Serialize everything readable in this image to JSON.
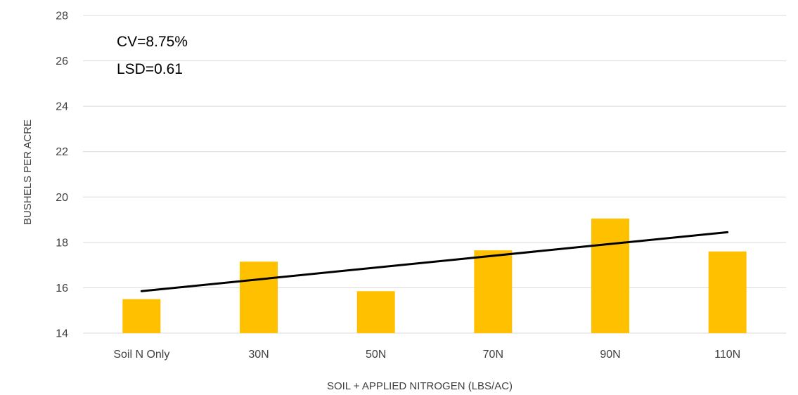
{
  "chart_data": {
    "type": "bar",
    "categories": [
      "Soil N Only",
      "30N",
      "50N",
      "70N",
      "90N",
      "110N"
    ],
    "values": [
      15.5,
      17.15,
      15.85,
      17.65,
      19.05,
      17.6
    ],
    "trendline": {
      "type": "linear",
      "start": 15.85,
      "end": 18.45
    },
    "xlabel": "SOIL + APPLIED NITROGEN (LBS/AC)",
    "ylabel": "BUSHELS PER ACRE",
    "ylim": [
      14,
      28
    ],
    "yticks": [
      14,
      16,
      18,
      20,
      22,
      24,
      26,
      28
    ],
    "grid": true,
    "annotations": [
      "CV=8.75%",
      "LSD=0.61"
    ],
    "colors": {
      "bar": "#FFC000",
      "trendline": "#000000",
      "grid": "#D9D9D9"
    }
  }
}
